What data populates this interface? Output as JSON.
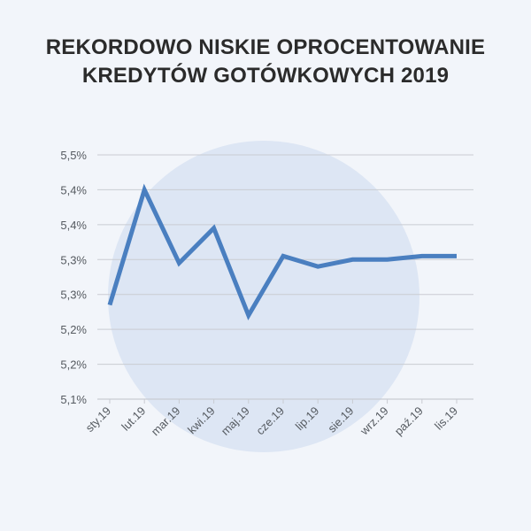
{
  "title_lines": [
    "REKORDOWO NISKIE OPROCENTOWANIE",
    "KREDYTÓW GOTÓWKOWYCH 2019"
  ],
  "colors": {
    "background": "#f2f5fa",
    "circle": "#dde6f4",
    "line": "#4a7fc0",
    "grid": "#c9ccd2",
    "title": "#2b2b2b"
  },
  "chart_data": {
    "type": "line",
    "title": "REKORDOWO NISKIE OPROCENTOWANIE KREDYTÓW GOTÓWKOWYCH 2019",
    "xlabel": "",
    "ylabel": "",
    "categories": [
      "sty.19",
      "lut.19",
      "mar.19",
      "kwi.19",
      "maj.19",
      "cze.19",
      "lip.19",
      "sie.19",
      "wrz.19",
      "paź.19",
      "lis.19"
    ],
    "series": [
      {
        "values": [
          5.235,
          5.4,
          5.295,
          5.345,
          5.22,
          5.305,
          5.29,
          5.3,
          5.3,
          5.305,
          5.305
        ]
      }
    ],
    "y_tick_values": [
      5.1,
      5.15,
      5.2,
      5.25,
      5.3,
      5.35,
      5.4,
      5.45
    ],
    "y_tick_labels": [
      "5,1%",
      "5,2%",
      "5,2%",
      "5,3%",
      "5,3%",
      "5,4%",
      "5,4%",
      "5,5%"
    ],
    "ylim": [
      5.1,
      5.45
    ],
    "grid": "horizontal"
  }
}
